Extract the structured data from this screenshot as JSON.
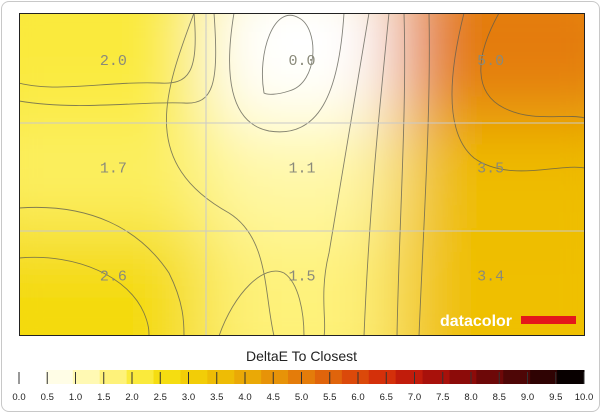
{
  "chart_data": {
    "type": "heatmap",
    "title": "",
    "grid": {
      "rows": 3,
      "cols": 3
    },
    "cells": [
      [
        2.0,
        0.0,
        5.0
      ],
      [
        1.7,
        1.1,
        3.5
      ],
      [
        2.6,
        1.5,
        3.4
      ]
    ],
    "cell_labels": [
      [
        "2.0",
        "0.0",
        "5.0"
      ],
      [
        "1.7",
        "1.1",
        "3.5"
      ],
      [
        "2.6",
        "1.5",
        "3.4"
      ]
    ],
    "contours": "on",
    "gridlines": "on",
    "colorbar": {
      "title": "DeltaE To Closest",
      "range": [
        0,
        10
      ],
      "ticks": [
        "0.0",
        "0.5",
        "1.0",
        "1.5",
        "2.0",
        "2.5",
        "3.0",
        "3.5",
        "4.0",
        "4.5",
        "5.0",
        "5.5",
        "6.0",
        "6.5",
        "7.0",
        "7.5",
        "8.0",
        "8.5",
        "9.0",
        "9.5",
        "10.0"
      ],
      "colors": [
        "#ffffff",
        "#fffde6",
        "#fff9b3",
        "#fef27a",
        "#faea3c",
        "#f5dd11",
        "#f2cd07",
        "#eebc05",
        "#eaa906",
        "#e79308",
        "#e47c0a",
        "#e0640b",
        "#db490a",
        "#d4300a",
        "#c11c0b",
        "#a8110b",
        "#8c0b09",
        "#6d0808",
        "#4e0606",
        "#2f0303",
        "#080000"
      ]
    }
  },
  "brand": {
    "text": "datacolor",
    "bar_color": "#e4171b"
  }
}
